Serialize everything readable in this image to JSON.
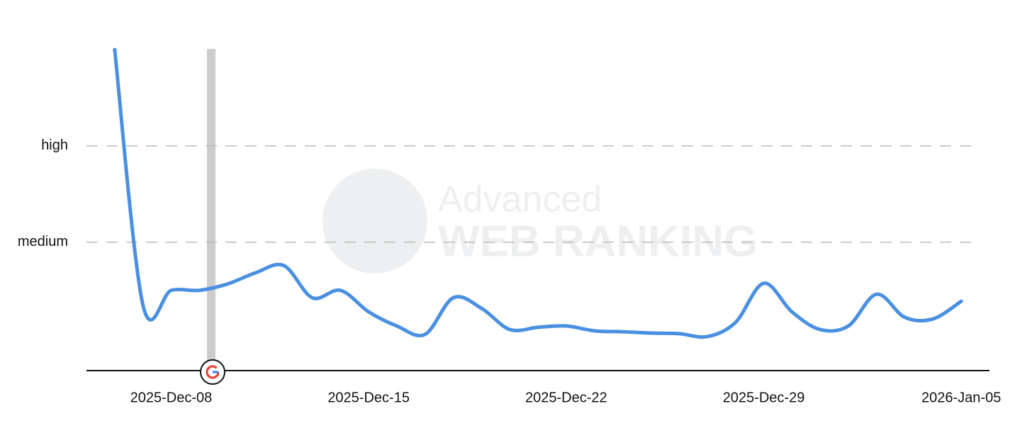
{
  "chart_data": {
    "type": "line",
    "watermark": [
      "Advanced",
      "WEB RANKING"
    ],
    "x": [
      "2025-12-06",
      "2025-12-07",
      "2025-12-08",
      "2025-12-09",
      "2025-12-10",
      "2025-12-11",
      "2025-12-12",
      "2025-12-13",
      "2025-12-14",
      "2025-12-15",
      "2025-12-16",
      "2025-12-17",
      "2025-12-18",
      "2025-12-19",
      "2025-12-20",
      "2025-12-21",
      "2025-12-22",
      "2025-12-23",
      "2025-12-24",
      "2025-12-25",
      "2025-12-26",
      "2025-12-27",
      "2025-12-28",
      "2025-12-29",
      "2025-12-30",
      "2025-12-31",
      "2026-01-01",
      "2026-01-02",
      "2026-01-03",
      "2026-01-04",
      "2026-01-05"
    ],
    "values": [
      10,
      2.05,
      2.5,
      2.5,
      2.7,
      3.05,
      3.27,
      2.27,
      2.5,
      1.83,
      1.39,
      1.13,
      2.27,
      1.94,
      1.28,
      1.35,
      1.39,
      1.24,
      1.21,
      1.17,
      1.15,
      1.06,
      1.5,
      2.72,
      1.83,
      1.28,
      1.39,
      2.38,
      1.66,
      1.61,
      2.16
    ],
    "color": "#4a90e2",
    "xlim": [
      "2025-12-05",
      "2026-01-06"
    ],
    "xticks": [
      {
        "value": "2025-12-08",
        "label": "2025-Dec-08"
      },
      {
        "value": "2025-12-15",
        "label": "2025-Dec-15"
      },
      {
        "value": "2025-12-22",
        "label": "2025-Dec-22"
      },
      {
        "value": "2025-12-29",
        "label": "2025-Dec-29"
      },
      {
        "value": "2026-01-05",
        "label": "2026-Jan-05"
      }
    ],
    "ylim": [
      0,
      10
    ],
    "yticks": [
      {
        "value": 4,
        "label": "medium"
      },
      {
        "value": 7,
        "label": "high"
      }
    ],
    "grid": true
  }
}
